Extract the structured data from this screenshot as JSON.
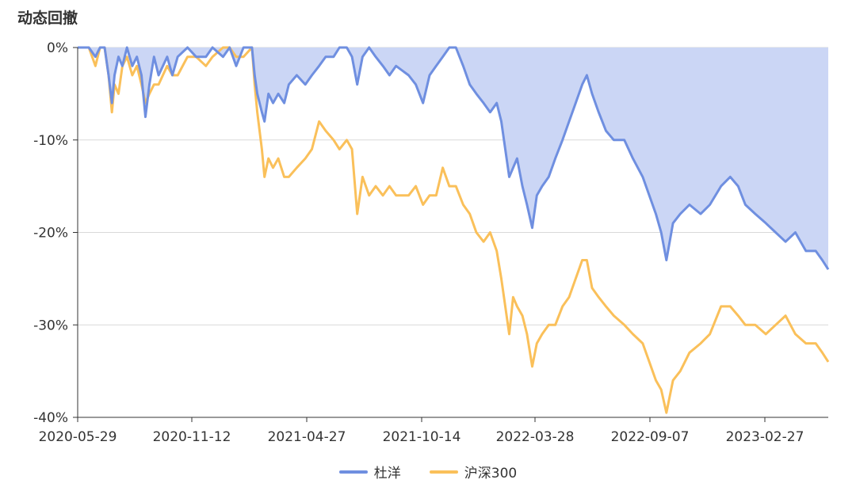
{
  "chart_data": {
    "type": "area",
    "title": "动态回撤",
    "ylim": [
      -40,
      0
    ],
    "y_ticks": [
      0,
      -10,
      -20,
      -30,
      -40
    ],
    "y_tick_labels": [
      "0%",
      "-10%",
      "-20%",
      "-30%",
      "-40%"
    ],
    "x_tick_labels": [
      "2020-05-29",
      "2020-11-12",
      "2021-04-27",
      "2021-10-14",
      "2022-03-28",
      "2022-09-07",
      "2023-02-27"
    ],
    "x_range": [
      "2020-05-29",
      "2023-07-14"
    ],
    "grid": true,
    "legend_position": "bottom-center",
    "series": [
      {
        "name": "杜洋",
        "color": "#6f8fe0",
        "fill": "#cbd6f5",
        "points": [
          [
            "2020-05-29",
            0
          ],
          [
            "2020-06-15",
            0
          ],
          [
            "2020-06-25",
            -1
          ],
          [
            "2020-07-02",
            0
          ],
          [
            "2020-07-09",
            0
          ],
          [
            "2020-07-15",
            -3
          ],
          [
            "2020-07-20",
            -6
          ],
          [
            "2020-07-24",
            -3
          ],
          [
            "2020-07-30",
            -1
          ],
          [
            "2020-08-05",
            -2
          ],
          [
            "2020-08-12",
            0
          ],
          [
            "2020-08-20",
            -2
          ],
          [
            "2020-08-27",
            -1
          ],
          [
            "2020-09-03",
            -3
          ],
          [
            "2020-09-09",
            -7.5
          ],
          [
            "2020-09-15",
            -4
          ],
          [
            "2020-09-22",
            -1
          ],
          [
            "2020-09-29",
            -3
          ],
          [
            "2020-10-12",
            -1
          ],
          [
            "2020-10-20",
            -3
          ],
          [
            "2020-10-28",
            -1
          ],
          [
            "2020-11-12",
            0
          ],
          [
            "2020-11-25",
            -1
          ],
          [
            "2020-12-10",
            -1
          ],
          [
            "2020-12-20",
            0
          ],
          [
            "2021-01-05",
            -1
          ],
          [
            "2021-01-15",
            0
          ],
          [
            "2021-01-25",
            -2
          ],
          [
            "2021-02-05",
            0
          ],
          [
            "2021-02-18",
            0
          ],
          [
            "2021-02-22",
            -3
          ],
          [
            "2021-02-26",
            -5
          ],
          [
            "2021-03-05",
            -7
          ],
          [
            "2021-03-09",
            -8
          ],
          [
            "2021-03-15",
            -5
          ],
          [
            "2021-03-22",
            -6
          ],
          [
            "2021-03-30",
            -5
          ],
          [
            "2021-04-08",
            -6
          ],
          [
            "2021-04-15",
            -4
          ],
          [
            "2021-04-27",
            -3
          ],
          [
            "2021-05-10",
            -4
          ],
          [
            "2021-05-20",
            -3
          ],
          [
            "2021-05-31",
            -2
          ],
          [
            "2021-06-10",
            -1
          ],
          [
            "2021-06-22",
            -1
          ],
          [
            "2021-07-01",
            0
          ],
          [
            "2021-07-12",
            0
          ],
          [
            "2021-07-20",
            -1
          ],
          [
            "2021-07-28",
            -4
          ],
          [
            "2021-08-05",
            -1
          ],
          [
            "2021-08-15",
            0
          ],
          [
            "2021-08-25",
            -1
          ],
          [
            "2021-09-05",
            -2
          ],
          [
            "2021-09-15",
            -3
          ],
          [
            "2021-09-25",
            -2
          ],
          [
            "2021-10-14",
            -3
          ],
          [
            "2021-10-25",
            -4
          ],
          [
            "2021-11-05",
            -6
          ],
          [
            "2021-11-15",
            -3
          ],
          [
            "2021-11-25",
            -2
          ],
          [
            "2021-12-05",
            -1
          ],
          [
            "2021-12-15",
            0
          ],
          [
            "2021-12-25",
            0
          ],
          [
            "2022-01-05",
            -2
          ],
          [
            "2022-01-15",
            -4
          ],
          [
            "2022-01-25",
            -5
          ],
          [
            "2022-02-05",
            -6
          ],
          [
            "2022-02-15",
            -7
          ],
          [
            "2022-02-25",
            -6
          ],
          [
            "2022-03-04",
            -8
          ],
          [
            "2022-03-10",
            -11
          ],
          [
            "2022-03-16",
            -14
          ],
          [
            "2022-03-22",
            -13
          ],
          [
            "2022-03-28",
            -12
          ],
          [
            "2022-04-05",
            -15
          ],
          [
            "2022-04-12",
            -17
          ],
          [
            "2022-04-20",
            -19.5
          ],
          [
            "2022-04-27",
            -16
          ],
          [
            "2022-05-05",
            -15
          ],
          [
            "2022-05-15",
            -14
          ],
          [
            "2022-05-25",
            -12
          ],
          [
            "2022-06-05",
            -10
          ],
          [
            "2022-06-15",
            -8
          ],
          [
            "2022-06-25",
            -6
          ],
          [
            "2022-07-05",
            -4
          ],
          [
            "2022-07-12",
            -3
          ],
          [
            "2022-07-20",
            -5
          ],
          [
            "2022-07-30",
            -7
          ],
          [
            "2022-08-10",
            -9
          ],
          [
            "2022-08-22",
            -10
          ],
          [
            "2022-09-07",
            -10
          ],
          [
            "2022-09-20",
            -12
          ],
          [
            "2022-10-05",
            -14
          ],
          [
            "2022-10-15",
            -16
          ],
          [
            "2022-10-25",
            -18
          ],
          [
            "2022-11-02",
            -20
          ],
          [
            "2022-11-10",
            -23
          ],
          [
            "2022-11-20",
            -19
          ],
          [
            "2022-12-01",
            -18
          ],
          [
            "2022-12-15",
            -17
          ],
          [
            "2023-01-01",
            -18
          ],
          [
            "2023-01-15",
            -17
          ],
          [
            "2023-02-01",
            -15
          ],
          [
            "2023-02-15",
            -14
          ],
          [
            "2023-02-27",
            -15
          ],
          [
            "2023-03-10",
            -17
          ],
          [
            "2023-03-25",
            -18
          ],
          [
            "2023-04-10",
            -19
          ],
          [
            "2023-04-25",
            -20
          ],
          [
            "2023-05-10",
            -21
          ],
          [
            "2023-05-25",
            -20
          ],
          [
            "2023-06-10",
            -22
          ],
          [
            "2023-06-25",
            -22
          ],
          [
            "2023-07-05",
            -23
          ],
          [
            "2023-07-14",
            -24
          ]
        ]
      },
      {
        "name": "沪深300",
        "color": "#fac05a",
        "points": [
          [
            "2020-05-29",
            0
          ],
          [
            "2020-06-15",
            0
          ],
          [
            "2020-06-25",
            -2
          ],
          [
            "2020-07-02",
            0
          ],
          [
            "2020-07-09",
            0
          ],
          [
            "2020-07-15",
            -3
          ],
          [
            "2020-07-20",
            -7
          ],
          [
            "2020-07-24",
            -4
          ],
          [
            "2020-07-30",
            -5
          ],
          [
            "2020-08-05",
            -2
          ],
          [
            "2020-08-12",
            -1
          ],
          [
            "2020-08-20",
            -3
          ],
          [
            "2020-08-27",
            -2
          ],
          [
            "2020-09-03",
            -4
          ],
          [
            "2020-09-09",
            -6
          ],
          [
            "2020-09-15",
            -5
          ],
          [
            "2020-09-22",
            -4
          ],
          [
            "2020-09-29",
            -4
          ],
          [
            "2020-10-12",
            -2
          ],
          [
            "2020-10-20",
            -3
          ],
          [
            "2020-10-28",
            -3
          ],
          [
            "2020-11-12",
            -1
          ],
          [
            "2020-11-25",
            -1
          ],
          [
            "2020-12-10",
            -2
          ],
          [
            "2020-12-20",
            -1
          ],
          [
            "2021-01-05",
            0
          ],
          [
            "2021-01-15",
            0
          ],
          [
            "2021-01-25",
            -1
          ],
          [
            "2021-02-05",
            -1
          ],
          [
            "2021-02-18",
            0
          ],
          [
            "2021-02-22",
            -4
          ],
          [
            "2021-02-26",
            -7
          ],
          [
            "2021-03-05",
            -11
          ],
          [
            "2021-03-09",
            -14
          ],
          [
            "2021-03-15",
            -12
          ],
          [
            "2021-03-22",
            -13
          ],
          [
            "2021-03-30",
            -12
          ],
          [
            "2021-04-08",
            -14
          ],
          [
            "2021-04-15",
            -14
          ],
          [
            "2021-04-27",
            -13
          ],
          [
            "2021-05-10",
            -12
          ],
          [
            "2021-05-20",
            -11
          ],
          [
            "2021-05-31",
            -8
          ],
          [
            "2021-06-10",
            -9
          ],
          [
            "2021-06-22",
            -10
          ],
          [
            "2021-07-01",
            -11
          ],
          [
            "2021-07-12",
            -10
          ],
          [
            "2021-07-20",
            -11
          ],
          [
            "2021-07-28",
            -18
          ],
          [
            "2021-08-05",
            -14
          ],
          [
            "2021-08-15",
            -16
          ],
          [
            "2021-08-25",
            -15
          ],
          [
            "2021-09-05",
            -16
          ],
          [
            "2021-09-15",
            -15
          ],
          [
            "2021-09-25",
            -16
          ],
          [
            "2021-10-14",
            -16
          ],
          [
            "2021-10-25",
            -15
          ],
          [
            "2021-11-05",
            -17
          ],
          [
            "2021-11-15",
            -16
          ],
          [
            "2021-11-25",
            -16
          ],
          [
            "2021-12-05",
            -13
          ],
          [
            "2021-12-15",
            -15
          ],
          [
            "2021-12-25",
            -15
          ],
          [
            "2022-01-05",
            -17
          ],
          [
            "2022-01-15",
            -18
          ],
          [
            "2022-01-25",
            -20
          ],
          [
            "2022-02-05",
            -21
          ],
          [
            "2022-02-15",
            -20
          ],
          [
            "2022-02-25",
            -22
          ],
          [
            "2022-03-04",
            -25
          ],
          [
            "2022-03-10",
            -28
          ],
          [
            "2022-03-16",
            -31
          ],
          [
            "2022-03-22",
            -27
          ],
          [
            "2022-03-28",
            -28
          ],
          [
            "2022-04-05",
            -29
          ],
          [
            "2022-04-12",
            -31
          ],
          [
            "2022-04-20",
            -34.5
          ],
          [
            "2022-04-27",
            -32
          ],
          [
            "2022-05-05",
            -31
          ],
          [
            "2022-05-15",
            -30
          ],
          [
            "2022-05-25",
            -30
          ],
          [
            "2022-06-05",
            -28
          ],
          [
            "2022-06-15",
            -27
          ],
          [
            "2022-06-25",
            -25
          ],
          [
            "2022-07-05",
            -23
          ],
          [
            "2022-07-12",
            -23
          ],
          [
            "2022-07-20",
            -26
          ],
          [
            "2022-07-30",
            -27
          ],
          [
            "2022-08-10",
            -28
          ],
          [
            "2022-08-22",
            -29
          ],
          [
            "2022-09-07",
            -30
          ],
          [
            "2022-09-20",
            -31
          ],
          [
            "2022-10-05",
            -32
          ],
          [
            "2022-10-15",
            -34
          ],
          [
            "2022-10-25",
            -36
          ],
          [
            "2022-11-02",
            -37
          ],
          [
            "2022-11-10",
            -39.5
          ],
          [
            "2022-11-20",
            -36
          ],
          [
            "2022-12-01",
            -35
          ],
          [
            "2022-12-15",
            -33
          ],
          [
            "2023-01-01",
            -32
          ],
          [
            "2023-01-15",
            -31
          ],
          [
            "2023-02-01",
            -28
          ],
          [
            "2023-02-15",
            -28
          ],
          [
            "2023-02-27",
            -29
          ],
          [
            "2023-03-10",
            -30
          ],
          [
            "2023-03-25",
            -30
          ],
          [
            "2023-04-10",
            -31
          ],
          [
            "2023-04-25",
            -30
          ],
          [
            "2023-05-10",
            -29
          ],
          [
            "2023-05-25",
            -31
          ],
          [
            "2023-06-10",
            -32
          ],
          [
            "2023-06-25",
            -32
          ],
          [
            "2023-07-05",
            -33
          ],
          [
            "2023-07-14",
            -34
          ]
        ]
      }
    ]
  }
}
